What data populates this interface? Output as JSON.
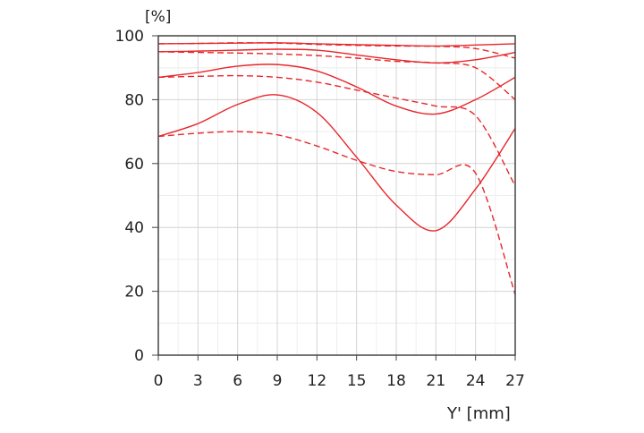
{
  "chart_data": {
    "type": "line",
    "title": "",
    "ylabel": "[%]",
    "xlabel": "Y' [mm]",
    "xlim": [
      0,
      27
    ],
    "ylim": [
      0,
      100
    ],
    "x_ticks": [
      0,
      3,
      6,
      9,
      12,
      15,
      18,
      21,
      24,
      27
    ],
    "y_ticks": [
      0,
      20,
      40,
      60,
      80,
      100
    ],
    "grid": true,
    "x": [
      0,
      3,
      6,
      9,
      12,
      15,
      18,
      21,
      24,
      27
    ],
    "series": [
      {
        "name": "solid-1",
        "style": "solid",
        "color": "#e8262a",
        "values": [
          97.5,
          97.6,
          97.7,
          97.8,
          97.5,
          97.2,
          97.0,
          96.8,
          97.1,
          97.5
        ]
      },
      {
        "name": "dashed-1",
        "style": "dashed",
        "color": "#e8262a",
        "values": [
          97.5,
          97.6,
          97.8,
          97.7,
          97.3,
          97.0,
          96.8,
          96.7,
          96.0,
          93.0
        ]
      },
      {
        "name": "solid-2",
        "style": "solid",
        "color": "#e8262a",
        "values": [
          95.0,
          95.2,
          95.5,
          95.8,
          95.5,
          94.0,
          92.5,
          91.5,
          92.5,
          94.8
        ]
      },
      {
        "name": "dashed-2",
        "style": "dashed",
        "color": "#e8262a",
        "values": [
          95.0,
          94.8,
          94.6,
          94.3,
          93.8,
          93.0,
          92.0,
          91.5,
          90.0,
          80.0
        ]
      },
      {
        "name": "solid-3",
        "style": "solid",
        "color": "#e8262a",
        "values": [
          87.0,
          88.5,
          90.5,
          91.0,
          89.0,
          84.0,
          78.0,
          75.5,
          80.0,
          87.0
        ]
      },
      {
        "name": "dashed-3",
        "style": "dashed",
        "color": "#e8262a",
        "values": [
          87.0,
          87.3,
          87.5,
          87.0,
          85.5,
          83.0,
          80.5,
          78.0,
          75.0,
          53.0
        ]
      },
      {
        "name": "solid-4",
        "style": "solid",
        "color": "#e8262a",
        "values": [
          68.5,
          72.5,
          78.5,
          81.5,
          76.0,
          62.0,
          47.0,
          39.0,
          52.0,
          71.0
        ]
      },
      {
        "name": "dashed-4",
        "style": "dashed",
        "color": "#e8262a",
        "values": [
          68.5,
          69.5,
          70.0,
          69.0,
          65.5,
          61.0,
          57.5,
          56.5,
          57.0,
          19.0
        ]
      }
    ]
  }
}
